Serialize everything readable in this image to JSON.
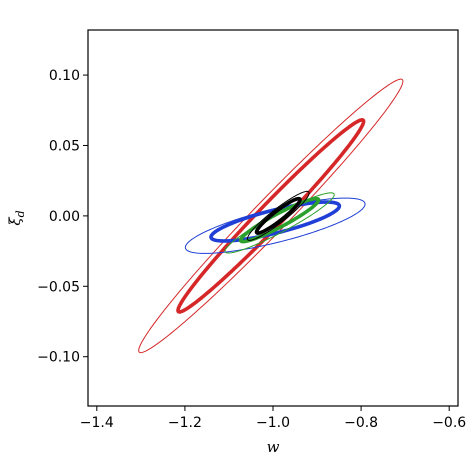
{
  "chart_data": {
    "type": "contour-ellipses",
    "xlabel": "w",
    "ylabel": "ξ_d",
    "ylabel_main": "ξ",
    "ylabel_sub": "d",
    "xlim": [
      -1.42,
      -0.58
    ],
    "ylim": [
      -0.135,
      0.132
    ],
    "xticks": [
      -1.4,
      -1.2,
      -1.0,
      -0.8,
      -0.6
    ],
    "xtick_labels": [
      "−1.4",
      "−1.2",
      "−1.0",
      "−0.8",
      "−0.6"
    ],
    "yticks": [
      -0.1,
      -0.05,
      0.0,
      0.05,
      0.1
    ],
    "ytick_labels": [
      "−0.10",
      "−0.05",
      "0.00",
      "0.05",
      "0.10"
    ],
    "grid": false,
    "series": [
      {
        "color": "#d62728",
        "ellipses": [
          {
            "level": "outer",
            "center": [
              -1.005,
              0.0
            ],
            "semi_major": 0.43,
            "semi_minor": 0.038,
            "angle_deg": 46,
            "thick": false
          },
          {
            "level": "inner",
            "center": [
              -1.005,
              0.0
            ],
            "semi_major": 0.302,
            "semi_minor": 0.027,
            "angle_deg": 46,
            "thick": true
          }
        ]
      },
      {
        "color": "#1f3fd6",
        "ellipses": [
          {
            "level": "outer",
            "center": [
              -0.995,
              -0.007
            ],
            "semi_major": 0.21,
            "semi_minor": 0.038,
            "angle_deg": 14,
            "thick": false
          },
          {
            "level": "inner",
            "center": [
              -0.995,
              -0.004
            ],
            "semi_major": 0.15,
            "semi_minor": 0.026,
            "angle_deg": 14,
            "thick": true
          }
        ]
      },
      {
        "color": "#2ca02c",
        "ellipses": [
          {
            "level": "outer",
            "center": [
              -0.985,
              -0.005
            ],
            "semi_major": 0.14,
            "semi_minor": 0.021,
            "angle_deg": 28,
            "thick": false
          },
          {
            "level": "inner",
            "center": [
              -0.985,
              -0.003
            ],
            "semi_major": 0.1,
            "semi_minor": 0.015,
            "angle_deg": 28,
            "thick": true
          }
        ]
      },
      {
        "color": "#000000",
        "ellipses": [
          {
            "level": "outer",
            "center": [
              -0.988,
              0.0
            ],
            "semi_major": 0.088,
            "semi_minor": 0.016,
            "angle_deg": 38,
            "thick": false
          },
          {
            "level": "inner",
            "center": [
              -0.988,
              0.0
            ],
            "semi_major": 0.062,
            "semi_minor": 0.011,
            "angle_deg": 38,
            "thick": true
          }
        ]
      }
    ]
  }
}
